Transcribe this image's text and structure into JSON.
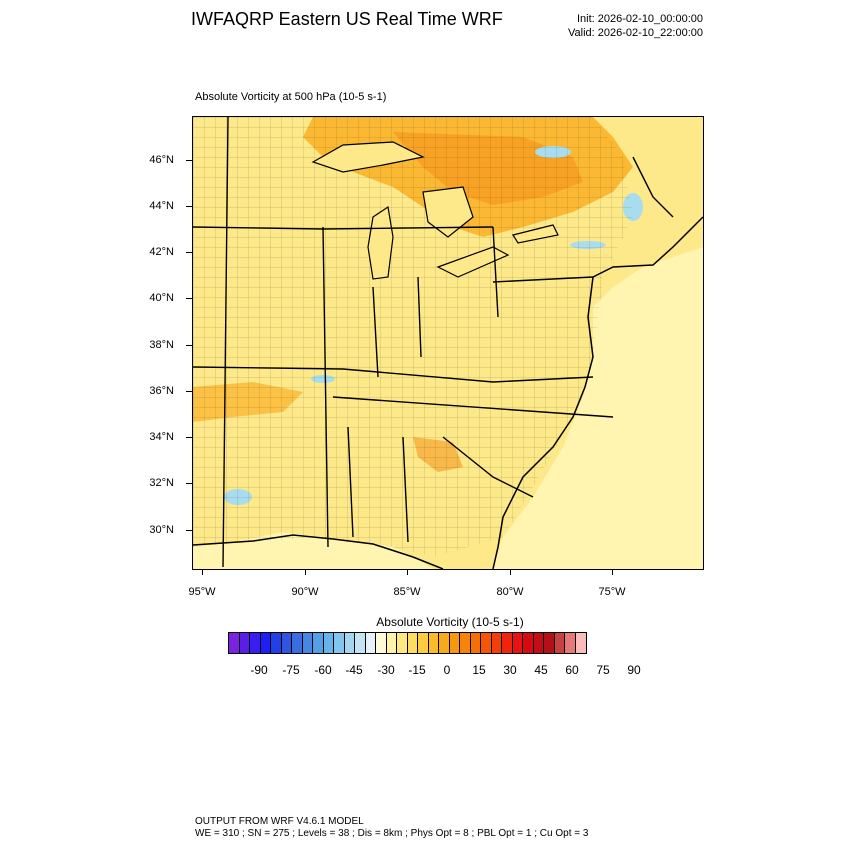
{
  "header": {
    "title": "IWFAQRP Eastern US Real Time WRF",
    "init": "Init: 2026-02-10_00:00:00",
    "valid": "Valid: 2026-02-10_22:00:00"
  },
  "map": {
    "title": "Absolute Vorticity at 500 hPa   (10-5 s-1)",
    "lat_labels": [
      "46°N",
      "44°N",
      "42°N",
      "40°N",
      "38°N",
      "36°N",
      "34°N",
      "32°N",
      "30°N"
    ],
    "lon_labels": [
      "95°W",
      "90°W",
      "85°W",
      "80°W",
      "75°W"
    ],
    "base_fill": "#fde88a",
    "ocean_fill": "#fff4b0",
    "high_fill": "#fbb833",
    "peak_fill": "#f7981f",
    "low_fill": "#a8dcef"
  },
  "colorbar": {
    "title": "Absolute Vorticity  (10-5 s-1)",
    "labels": [
      "-90",
      "-75",
      "-60",
      "-45",
      "-30",
      "-15",
      "0",
      "15",
      "30",
      "45",
      "60",
      "75",
      "90"
    ],
    "colors": [
      "#7a22e0",
      "#5a1ee8",
      "#3a1ef0",
      "#1e1ef5",
      "#2240e8",
      "#2e56e0",
      "#3a6ee0",
      "#4686e4",
      "#52a0e8",
      "#66b4ec",
      "#82c6ef",
      "#a2d6f2",
      "#c2e4f5",
      "#e6f2f7",
      "#fffbd6",
      "#fff4a8",
      "#fee880",
      "#fddc5e",
      "#fbcd3f",
      "#fabc28",
      "#f9aa18",
      "#f8980e",
      "#f78408",
      "#f66e06",
      "#f45606",
      "#f23e08",
      "#f0240c",
      "#e81212",
      "#d80a10",
      "#c40c14",
      "#b41018",
      "#c84040",
      "#e87878",
      "#fbbcbc"
    ]
  },
  "footer": {
    "line1": "OUTPUT FROM WRF V4.6.1 MODEL",
    "line2": "WE = 310 ; SN = 275 ; Levels = 38 ; Dis = 8km ; Phys Opt = 8 ; PBL Opt = 1 ; Cu Opt = 3"
  }
}
